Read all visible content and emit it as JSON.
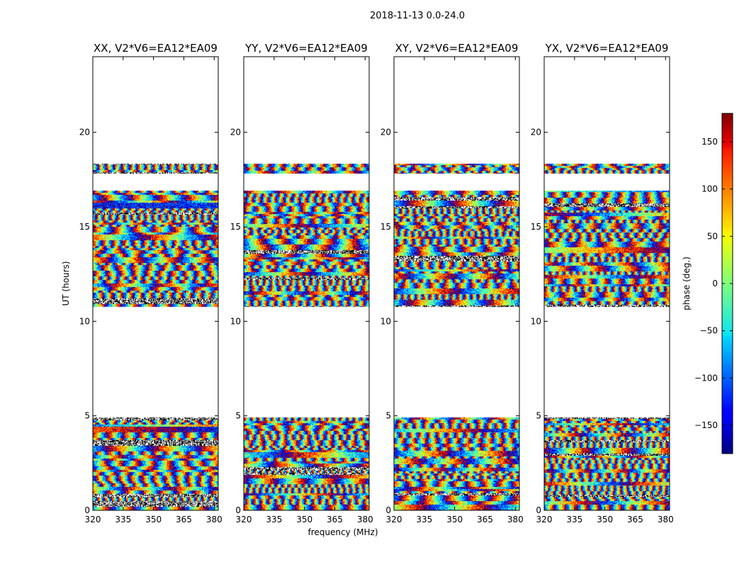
{
  "chart_data": {
    "type": "heatmap",
    "title": "2018-11-13 0.0-24.0",
    "xlabel": "frequency (MHz)",
    "ylabel": "UT (hours)",
    "xlim": [
      320,
      382
    ],
    "ylim": [
      0,
      24
    ],
    "xticks": [
      "320",
      "335",
      "350",
      "365",
      "380"
    ],
    "yticks": [
      "0",
      "5",
      "10",
      "15",
      "20"
    ],
    "colorbar": {
      "label": "phase (deg.)",
      "range": [
        -180,
        180
      ],
      "ticks": [
        "−150",
        "−100",
        "−50",
        "0",
        "50",
        "100",
        "150"
      ],
      "colormap": "jet"
    },
    "panels": [
      {
        "title": "XX, V2*V6=EA12*EA09",
        "baseline": "V2*V6=EA12*EA09",
        "polarization": "XX"
      },
      {
        "title": "YY, V2*V6=EA12*EA09",
        "baseline": "V2*V6=EA12*EA09",
        "polarization": "YY"
      },
      {
        "title": "XY, V2*V6=EA12*EA09",
        "baseline": "V2*V6=EA12*EA09",
        "polarization": "XY"
      },
      {
        "title": "YX, V2*V6=EA12*EA09",
        "baseline": "V2*V6=EA12*EA09",
        "polarization": "YX"
      }
    ],
    "data_ut_ranges_hours": [
      [
        0.0,
        4.9
      ],
      [
        10.75,
        16.9
      ],
      [
        17.8,
        18.3
      ]
    ]
  }
}
